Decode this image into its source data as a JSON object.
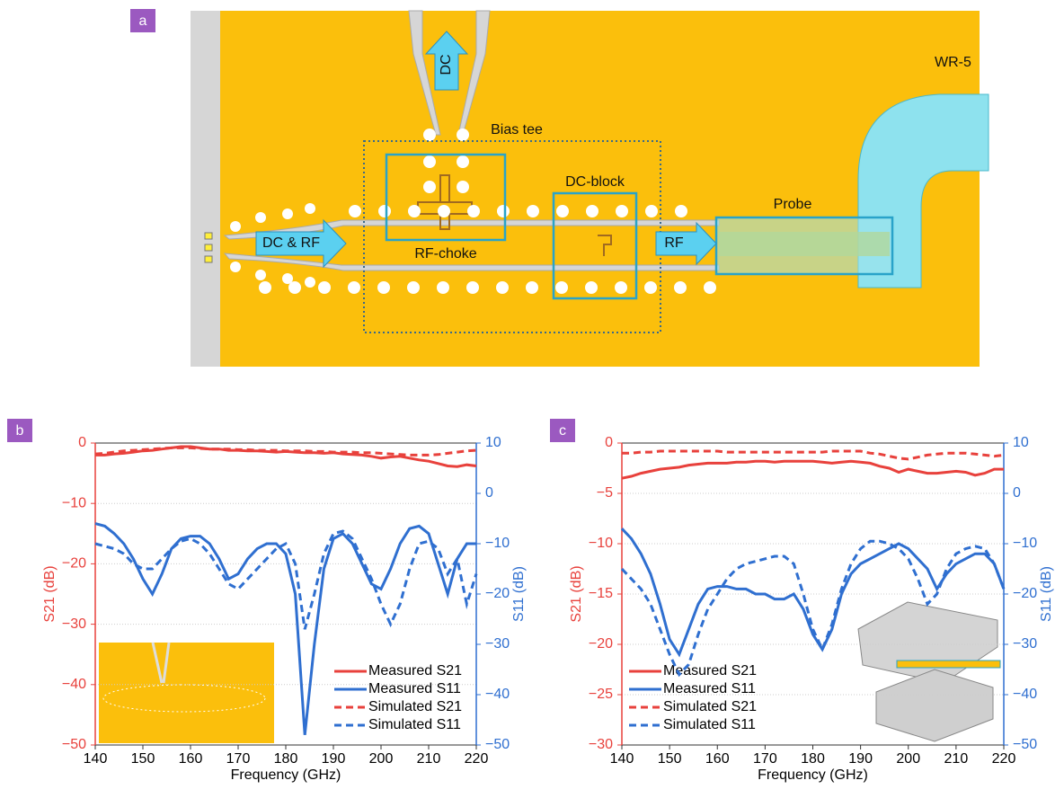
{
  "diagram": {
    "panel_label": "a",
    "dc": "DC",
    "bias_tee": "Bias tee",
    "dc_block": "DC-block",
    "probe": "Probe",
    "waveguide": "WR-5",
    "rf_choke": "RF-choke",
    "dc_rf": "DC & RF",
    "rf": "RF"
  },
  "chart_data": [
    {
      "type": "line",
      "panel_label": "b",
      "x": [
        140,
        142,
        144,
        146,
        148,
        150,
        152,
        154,
        156,
        158,
        160,
        162,
        164,
        166,
        168,
        170,
        172,
        174,
        176,
        178,
        180,
        182,
        184,
        186,
        188,
        190,
        192,
        194,
        196,
        198,
        200,
        202,
        204,
        206,
        208,
        210,
        212,
        214,
        216,
        218,
        220
      ],
      "xlim": [
        140,
        220
      ],
      "xticks": [
        140,
        150,
        160,
        170,
        180,
        190,
        200,
        210,
        220
      ],
      "ylim": [
        -50,
        0
      ],
      "yticks": [
        0,
        {
          "value": -10,
          "label": "−10"
        },
        {
          "value": -20,
          "label": "−20"
        },
        {
          "value": -30,
          "label": "−30"
        },
        {
          "value": -40,
          "label": "−40"
        },
        {
          "value": -50,
          "label": "−50"
        }
      ],
      "y2lim": [
        -50,
        10
      ],
      "y2ticks": [
        10,
        0,
        {
          "value": -10,
          "label": "−10"
        },
        {
          "value": -20,
          "label": "−20"
        },
        {
          "value": -30,
          "label": "−30"
        },
        {
          "value": -40,
          "label": "−40"
        },
        {
          "value": -50,
          "label": "−50"
        }
      ],
      "xlabel": "Frequency (GHz)",
      "ylabel": "S21 (dB)",
      "y2label": "S11 (dB)",
      "grid": true,
      "legend": "lower right",
      "series": [
        {
          "name": "Measured S21",
          "color": "#e8413c",
          "style": "solid",
          "values": [
            -2,
            -2,
            -1.8,
            -1.7,
            -1.5,
            -1.3,
            -1.2,
            -1,
            -0.8,
            -0.6,
            -0.6,
            -0.8,
            -1,
            -1,
            -1.2,
            -1.2,
            -1.3,
            -1.3,
            -1.4,
            -1.5,
            -1.4,
            -1.5,
            -1.6,
            -1.6,
            -1.7,
            -1.6,
            -1.8,
            -1.9,
            -2,
            -2.2,
            -2.5,
            -2.3,
            -2.2,
            -2.5,
            -2.8,
            -3,
            -3.4,
            -3.8,
            -3.9,
            -3.6,
            -3.8
          ]
        },
        {
          "name": "Measured S11",
          "color": "#2f6fd0",
          "style": "solid",
          "axis": "y2",
          "values": [
            -6,
            -6.5,
            -8,
            -10,
            -13,
            -17,
            -20,
            -16,
            -11,
            -9,
            -8.5,
            -8.5,
            -10,
            -13,
            -17,
            -16,
            -13,
            -11,
            -10,
            -10,
            -12,
            -20,
            -48,
            -30,
            -15,
            -9,
            -8,
            -10,
            -14,
            -18,
            -19,
            -15,
            -10,
            -7,
            -6.5,
            -8,
            -14,
            -20,
            -13,
            -10,
            -10
          ]
        },
        {
          "name": "Simulated S21",
          "color": "#e8413c",
          "style": "dashed",
          "values": [
            -1.8,
            -1.7,
            -1.5,
            -1.3,
            -1.2,
            -1.1,
            -1,
            -0.9,
            -0.8,
            -0.8,
            -0.8,
            -0.9,
            -1,
            -1,
            -1,
            -1.1,
            -1.1,
            -1.2,
            -1.2,
            -1.2,
            -1.3,
            -1.3,
            -1.3,
            -1.4,
            -1.4,
            -1.5,
            -1.5,
            -1.5,
            -1.6,
            -1.6,
            -1.7,
            -1.8,
            -1.9,
            -2,
            -2,
            -2,
            -1.9,
            -1.7,
            -1.5,
            -1.3,
            -1.2
          ]
        },
        {
          "name": "Simulated S11",
          "color": "#2f6fd0",
          "style": "dashed",
          "axis": "y2",
          "values": [
            -10,
            -10.5,
            -11,
            -12,
            -14,
            -15,
            -15,
            -13,
            -11,
            -9.5,
            -9,
            -10,
            -12,
            -15,
            -18,
            -19,
            -17,
            -15,
            -13,
            -11,
            -10,
            -14,
            -27,
            -20,
            -12,
            -8,
            -7.5,
            -9,
            -13,
            -17,
            -22,
            -26,
            -22,
            -15,
            -10,
            -9.5,
            -11,
            -16,
            -13,
            -22,
            -16
          ]
        }
      ]
    },
    {
      "type": "line",
      "panel_label": "c",
      "x": [
        140,
        142,
        144,
        146,
        148,
        150,
        152,
        154,
        156,
        158,
        160,
        162,
        164,
        166,
        168,
        170,
        172,
        174,
        176,
        178,
        180,
        182,
        184,
        186,
        188,
        190,
        192,
        194,
        196,
        198,
        200,
        202,
        204,
        206,
        208,
        210,
        212,
        214,
        216,
        218,
        220
      ],
      "xlim": [
        140,
        220
      ],
      "xticks": [
        140,
        150,
        160,
        170,
        180,
        190,
        200,
        210,
        220
      ],
      "ylim": [
        -30,
        0
      ],
      "yticks": [
        0,
        {
          "value": -5,
          "label": "−5"
        },
        {
          "value": -10,
          "label": "−10"
        },
        {
          "value": -15,
          "label": "−15"
        },
        {
          "value": -20,
          "label": "−20"
        },
        {
          "value": -25,
          "label": "−25"
        },
        {
          "value": -30,
          "label": "−30"
        }
      ],
      "y2lim": [
        -50,
        10
      ],
      "y2ticks": [
        10,
        0,
        {
          "value": -10,
          "label": "−10"
        },
        {
          "value": -20,
          "label": "−20"
        },
        {
          "value": -30,
          "label": "−30"
        },
        {
          "value": -40,
          "label": "−40"
        },
        {
          "value": -50,
          "label": "−50"
        }
      ],
      "xlabel": "Frequency (GHz)",
      "ylabel": "S21 (dB)",
      "y2label": "S11 (dB)",
      "grid": true,
      "legend": "lower left",
      "series": [
        {
          "name": "Measured S21",
          "color": "#e8413c",
          "style": "solid",
          "values": [
            -3.5,
            -3.3,
            -3,
            -2.8,
            -2.6,
            -2.5,
            -2.4,
            -2.2,
            -2.1,
            -2,
            -2,
            -2,
            -1.9,
            -1.9,
            -1.8,
            -1.8,
            -1.9,
            -1.8,
            -1.8,
            -1.8,
            -1.8,
            -1.9,
            -2,
            -1.9,
            -1.8,
            -1.9,
            -2,
            -2.3,
            -2.5,
            -2.9,
            -2.6,
            -2.8,
            -3,
            -3,
            -2.9,
            -2.8,
            -2.9,
            -3.2,
            -3,
            -2.6,
            -2.6
          ]
        },
        {
          "name": "Measured S11",
          "color": "#2f6fd0",
          "style": "solid",
          "axis": "y2",
          "values": [
            -7,
            -9,
            -12,
            -16,
            -22,
            -29,
            -32,
            -27,
            -22,
            -19,
            -18.5,
            -18.5,
            -19,
            -19,
            -20,
            -20,
            -21,
            -21,
            -20,
            -23,
            -28,
            -31,
            -27,
            -20,
            -16,
            -14,
            -13,
            -12,
            -11,
            -10,
            -11,
            -13,
            -15,
            -19,
            -16,
            -14,
            -13,
            -12,
            -12,
            -14,
            -19
          ]
        },
        {
          "name": "Simulated S21",
          "color": "#e8413c",
          "style": "dashed",
          "values": [
            -1,
            -1,
            -0.9,
            -0.9,
            -0.8,
            -0.8,
            -0.8,
            -0.8,
            -0.8,
            -0.8,
            -0.8,
            -0.9,
            -0.9,
            -0.9,
            -0.9,
            -0.9,
            -0.9,
            -0.9,
            -0.9,
            -0.9,
            -0.9,
            -0.9,
            -0.8,
            -0.8,
            -0.8,
            -0.8,
            -1,
            -1.1,
            -1.3,
            -1.5,
            -1.6,
            -1.4,
            -1.2,
            -1.1,
            -1,
            -1,
            -1,
            -1.1,
            -1.2,
            -1.3,
            -1.2
          ]
        },
        {
          "name": "Simulated S11",
          "color": "#2f6fd0",
          "style": "dashed",
          "axis": "y2",
          "values": [
            -15,
            -17,
            -19,
            -22,
            -27,
            -32,
            -36,
            -34,
            -28,
            -23,
            -20,
            -17,
            -15,
            -14,
            -13.5,
            -13,
            -12.5,
            -12.5,
            -14,
            -20,
            -27,
            -31,
            -26,
            -19,
            -14,
            -11,
            -9.5,
            -9.5,
            -10,
            -11,
            -13,
            -17,
            -22,
            -20,
            -15,
            -12,
            -11,
            -10.5,
            -11,
            -14,
            -19
          ]
        }
      ]
    }
  ]
}
